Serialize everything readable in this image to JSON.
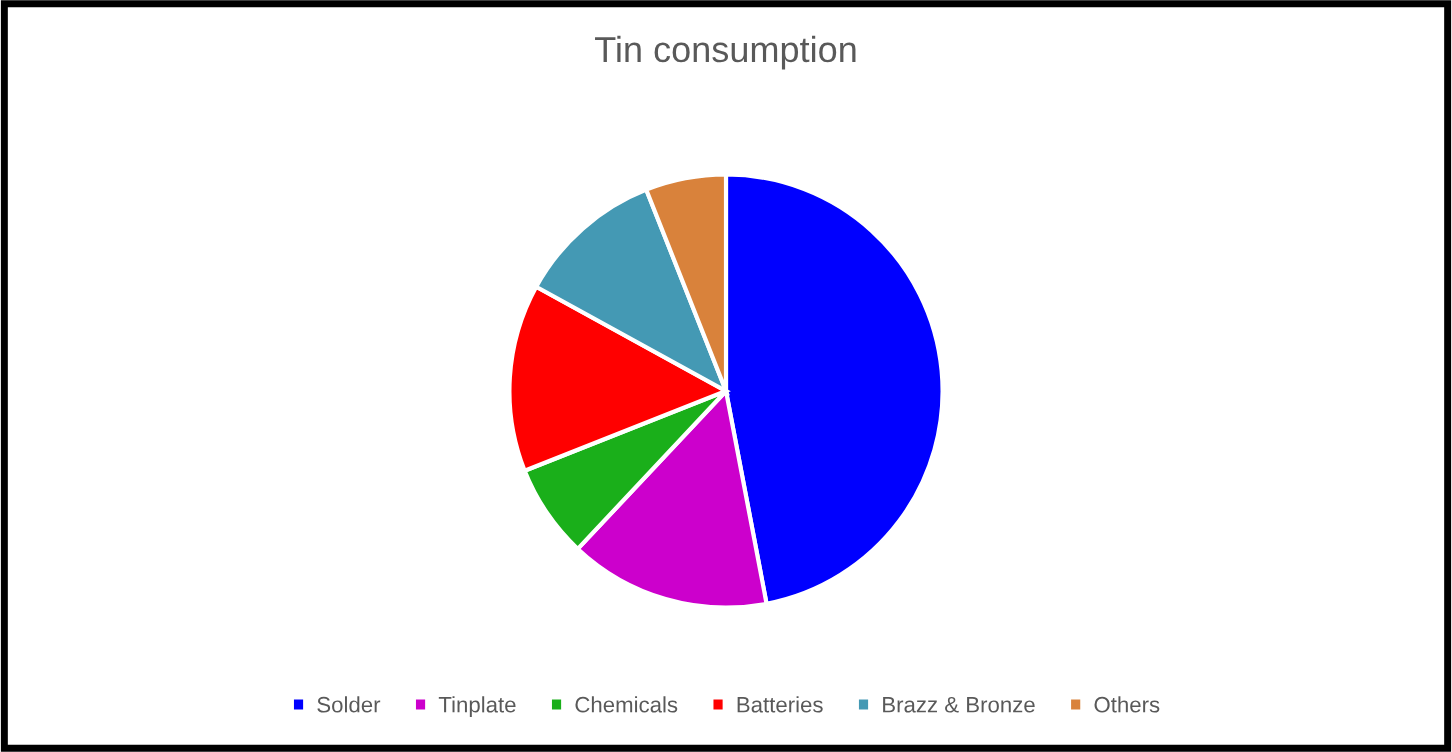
{
  "chart_data": {
    "type": "pie",
    "title": "Tin consumption",
    "categories": [
      "Solder",
      "Tinplate",
      "Chemicals",
      "Batteries",
      "Brazz & Bronze",
      "Others"
    ],
    "values": [
      47,
      15,
      7,
      14,
      11,
      6
    ],
    "colors": [
      "#0000ff",
      "#cc00cc",
      "#1aaf1a",
      "#ff0000",
      "#4499b4",
      "#d9823b"
    ],
    "legend": "bottom"
  }
}
